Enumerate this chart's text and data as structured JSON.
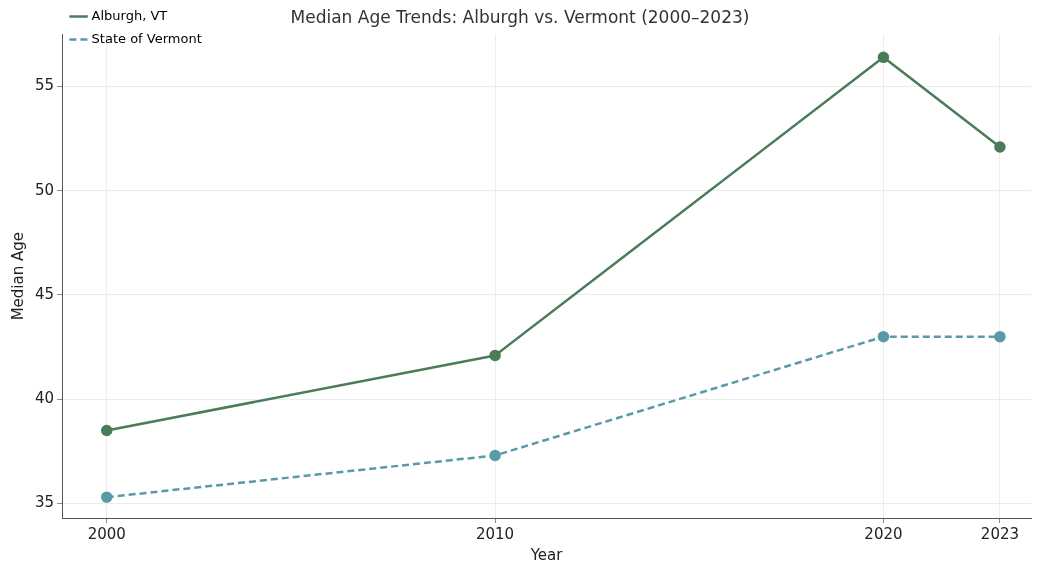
{
  "chart_data": {
    "type": "line",
    "title": "Median Age Trends: Alburgh vs. Vermont (2000–2023)",
    "xlabel": "Year",
    "ylabel": "Median Age",
    "x": [
      2000,
      2010,
      2020,
      2023
    ],
    "series": [
      {
        "name": "Alburgh, VT",
        "color": "#4a7c59",
        "values": [
          38.5,
          42.1,
          56.4,
          52.1
        ],
        "line_style": "solid"
      },
      {
        "name": "State of Vermont",
        "color": "#5a9aa8",
        "values": [
          35.3,
          37.3,
          43.0,
          43.0
        ],
        "line_style": "dashed"
      }
    ],
    "xlim": [
      1998.85,
      2023.8
    ],
    "xticks": [
      2000,
      2010,
      2020,
      2023
    ],
    "ylim": [
      34.3,
      57.5
    ],
    "yticks": [
      35,
      40,
      45,
      50,
      55
    ],
    "grid": true,
    "legend": "top left",
    "marker": "circle"
  }
}
